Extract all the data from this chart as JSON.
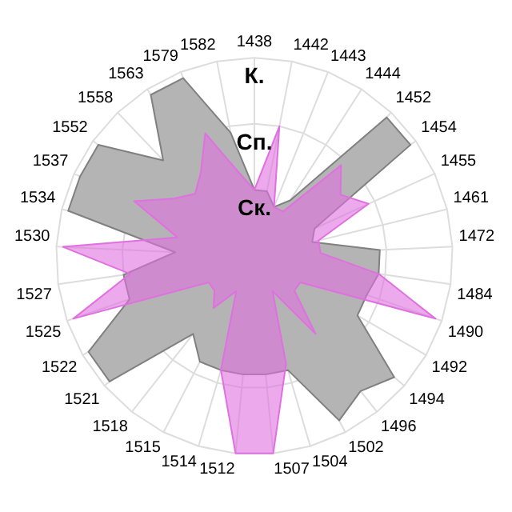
{
  "chart_data": {
    "type": "radar",
    "categories": [
      "1438",
      "1442",
      "1443",
      "1444",
      "1452",
      "1454",
      "1455",
      "1461",
      "1472",
      "1484",
      "1490",
      "1492",
      "1494",
      "1496",
      "1502",
      "1504",
      "1507",
      "1512",
      "1514",
      "1515",
      "1518",
      "1521",
      "1522",
      "1525",
      "1527",
      "1530",
      "1534",
      "1537",
      "1552",
      "1558",
      "1563",
      "1579",
      "1582"
    ],
    "series": [
      {
        "color": "#b4b4b4",
        "values": [
          1.0,
          1.0,
          0.8,
          1.0,
          2.9,
          2.9,
          1.0,
          0.9,
          1.9,
          1.9,
          1.8,
          1.8,
          2.8,
          2.6,
          2.8,
          1.8,
          1.8,
          1.8,
          1.8,
          1.8,
          1.5,
          2.9,
          2.9,
          2.0,
          2.0,
          1.2,
          2.9,
          2.9,
          2.9,
          2.0,
          2.9,
          2.9,
          1.9
        ]
      },
      {
        "color": "#e070e0",
        "values": [
          1.0,
          2.0,
          0.8,
          0.8,
          1.9,
          1.6,
          1.9,
          1.0,
          1.0,
          1.9,
          2.9,
          0.8,
          0.8,
          1.5,
          0.6,
          1.7,
          3.0,
          3.0,
          1.8,
          0.6,
          1.0,
          0.8,
          0.8,
          2.9,
          1.9,
          2.9,
          1.2,
          2.0,
          1.5,
          1.3,
          1.5,
          2.0,
          1.3
        ]
      }
    ],
    "ylim": [
      0,
      3
    ],
    "yticks": [
      {
        "value": 1,
        "label": "Ск."
      },
      {
        "value": 2,
        "label": "Сп."
      },
      {
        "value": 3,
        "label": "К."
      }
    ],
    "grid": true,
    "legend": false,
    "marker": "none"
  }
}
